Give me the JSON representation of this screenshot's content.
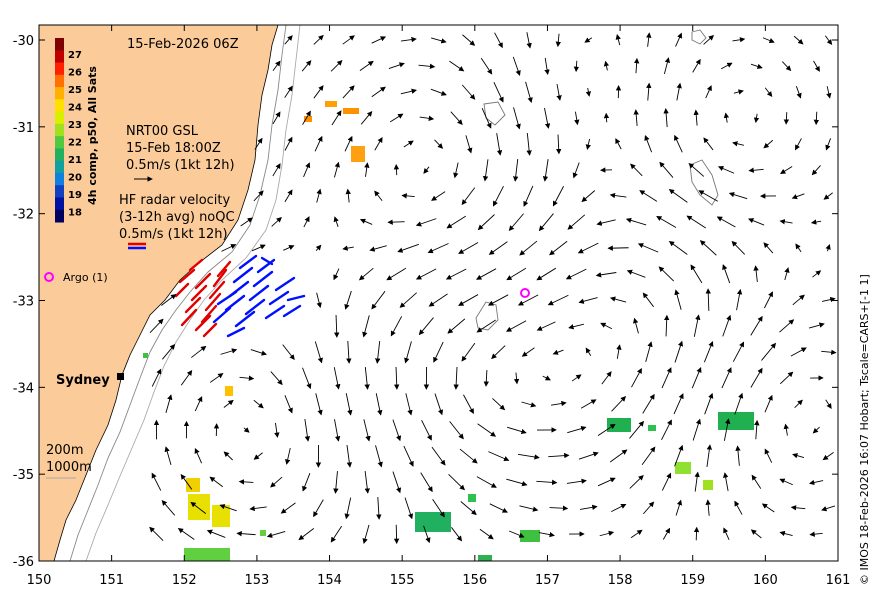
{
  "map": {
    "title": "15-Feb-2026 06Z",
    "colorbar": {
      "label": "4h comp, p50, All Sats",
      "ticks": [
        "27",
        "26",
        "25",
        "24",
        "23",
        "22",
        "21",
        "20",
        "19",
        "18"
      ],
      "colors": [
        "#7f0000",
        "#c00000",
        "#ff2000",
        "#ff7000",
        "#ffb000",
        "#ffe000",
        "#d8f000",
        "#a0e020",
        "#50c840",
        "#20b060",
        "#10a0a0",
        "#1080e0",
        "#1040c0",
        "#0010a0",
        "#000060"
      ]
    },
    "legend": {
      "nrt_line1": "NRT00 GSL",
      "nrt_line2": "15-Feb 18:00Z",
      "nrt_line3": "0.5m/s (1kt 12h)",
      "hf_line1": "HF radar velocity",
      "hf_line2": "(3-12h avg) noQC",
      "hf_line3": "0.5m/s (1kt 12h)",
      "argo": "Argo (1)",
      "depth1": "200m",
      "depth2": "1000m"
    },
    "place_labels": {
      "sydney": "Sydney"
    },
    "x_ticks": [
      "150",
      "151",
      "152",
      "153",
      "154",
      "155",
      "156",
      "157",
      "158",
      "159",
      "160",
      "161"
    ],
    "y_ticks": [
      "-30",
      "-31",
      "-32",
      "-33",
      "-34",
      "-35",
      "-36"
    ],
    "credit": "© IMOS 18-Feb-2026 16:07 Hobart; Tscale=CARS+[-1 1]",
    "land_color": "#fbcb9a",
    "argo_color": "#ff00ff",
    "hf_red": "#e00000",
    "hf_blue": "#0010ff"
  }
}
